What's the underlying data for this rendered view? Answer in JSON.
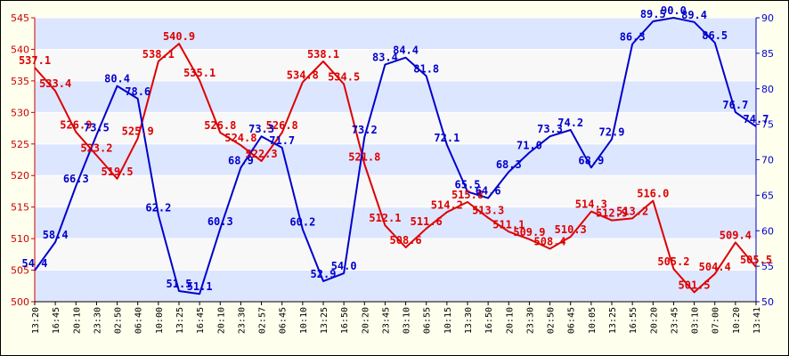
{
  "chart_data": {
    "type": "line",
    "x": [
      "13:20",
      "16:45",
      "20:10",
      "23:30",
      "02:50",
      "06:40",
      "10:00",
      "13:25",
      "16:45",
      "20:10",
      "23:30",
      "02:57",
      "06:45",
      "10:10",
      "13:25",
      "16:50",
      "20:20",
      "23:45",
      "03:10",
      "06:55",
      "10:15",
      "13:30",
      "16:50",
      "20:10",
      "23:30",
      "02:50",
      "06:45",
      "10:05",
      "13:25",
      "16:55",
      "20:20",
      "23:45",
      "03:10",
      "07:00",
      "10:20",
      "13:41"
    ],
    "y_left": {
      "min": 500,
      "max": 545,
      "step": 5,
      "color": "#cc0000"
    },
    "y_right": {
      "min": 50,
      "max": 90,
      "step": 5,
      "color": "#0000cc"
    },
    "grid": true,
    "band_colors": [
      "#dde6ff",
      "#f8f8f8"
    ],
    "series": [
      {
        "axis": "left",
        "color": "#dd0000",
        "points": [
          {
            "i": 0,
            "v": 537.1,
            "label": "537.1"
          },
          {
            "i": 1,
            "v": 533.4,
            "label": "533.4"
          },
          {
            "i": 2,
            "v": 526.9,
            "label": "526.9"
          },
          {
            "i": 3,
            "v": 523.2,
            "label": "523.2"
          },
          {
            "i": 4,
            "v": 519.5,
            "label": "519.5"
          },
          {
            "i": 5,
            "v": 525.9,
            "label": "525.9"
          },
          {
            "i": 6,
            "v": 538.1,
            "label": "538.1"
          },
          {
            "i": 7,
            "v": 540.9,
            "label": "540.9"
          },
          {
            "i": 8,
            "v": 535.1,
            "label": "535.1"
          },
          {
            "i": 9,
            "v": 526.8,
            "label": "526.8"
          },
          {
            "i": 10,
            "v": 524.8,
            "label": "524.8"
          },
          {
            "i": 11,
            "v": 522.3,
            "label": "522.3"
          },
          {
            "i": 12,
            "v": 526.8,
            "label": "526.8"
          },
          {
            "i": 13,
            "v": 534.8,
            "label": "534.8"
          },
          {
            "i": 14,
            "v": 538.1,
            "label": "538.1"
          },
          {
            "i": 15,
            "v": 534.5,
            "label": "534.5"
          },
          {
            "i": 16,
            "v": 521.8,
            "label": "521.8"
          },
          {
            "i": 17,
            "v": 512.1,
            "label": "512.1"
          },
          {
            "i": 18,
            "v": 508.6,
            "label": "508.6"
          },
          {
            "i": 19,
            "v": 511.6,
            "label": "511.6"
          },
          {
            "i": 20,
            "v": 514.2,
            "label": "514.2"
          },
          {
            "i": 21,
            "v": 515.8,
            "label": "515.8"
          },
          {
            "i": 22,
            "v": 513.3,
            "label": "513.3"
          },
          {
            "i": 23,
            "v": 511.1,
            "label": "511.1"
          },
          {
            "i": 24,
            "v": 509.9,
            "label": "509.9"
          },
          {
            "i": 25,
            "v": 508.4,
            "label": "508.4"
          },
          {
            "i": 26,
            "v": 510.3,
            "label": "510.3"
          },
          {
            "i": 27,
            "v": 514.3,
            "label": "514.3"
          },
          {
            "i": 28,
            "v": 512.9,
            "label": "512.9"
          },
          {
            "i": 29,
            "v": 513.2,
            "label": "513.2"
          },
          {
            "i": 30,
            "v": 516.0,
            "label": "516.0"
          },
          {
            "i": 31,
            "v": 505.2,
            "label": "505.2"
          },
          {
            "i": 32,
            "v": 501.5,
            "label": "501.5"
          },
          {
            "i": 33,
            "v": 504.4,
            "label": "504.4"
          },
          {
            "i": 34,
            "v": 509.4,
            "label": "509.4"
          },
          {
            "i": 35,
            "v": 505.5,
            "label": "505.5"
          }
        ]
      },
      {
        "axis": "right",
        "color": "#0000cc",
        "points": [
          {
            "i": 0,
            "v": 54.4,
            "label": "54.4"
          },
          {
            "i": 1,
            "v": 58.4,
            "label": "58.4"
          },
          {
            "i": 2,
            "v": 66.3,
            "label": "66.3"
          },
          {
            "i": 3,
            "v": 73.5,
            "label": "73.5"
          },
          {
            "i": 4,
            "v": 80.4,
            "label": "80.4"
          },
          {
            "i": 5,
            "v": 78.6,
            "label": "78.6"
          },
          {
            "i": 6,
            "v": 62.2,
            "label": "62.2"
          },
          {
            "i": 7,
            "v": 51.5,
            "label": "51.5"
          },
          {
            "i": 8,
            "v": 51.1,
            "label": "51.1"
          },
          {
            "i": 9,
            "v": 60.3,
            "label": "60.3"
          },
          {
            "i": 10,
            "v": 68.9,
            "label": "68.9"
          },
          {
            "i": 11,
            "v": 73.3,
            "label": "73.3"
          },
          {
            "i": 12,
            "v": 71.7,
            "label": "71.7"
          },
          {
            "i": 13,
            "v": 60.2,
            "label": "60.2"
          },
          {
            "i": 14,
            "v": 52.9,
            "label": "52.9"
          },
          {
            "i": 15,
            "v": 54.0,
            "label": "54.0"
          },
          {
            "i": 16,
            "v": 73.2,
            "label": "73.2"
          },
          {
            "i": 17,
            "v": 83.4,
            "label": "83.4"
          },
          {
            "i": 18,
            "v": 84.4,
            "label": "84.4"
          },
          {
            "i": 19,
            "v": 81.8,
            "label": "81.8"
          },
          {
            "i": 20,
            "v": 72.1,
            "label": "72.1"
          },
          {
            "i": 21,
            "v": 65.5,
            "label": "65.5"
          },
          {
            "i": 22,
            "v": 64.6,
            "label": "64.6"
          },
          {
            "i": 23,
            "v": 68.3,
            "label": "68.3"
          },
          {
            "i": 24,
            "v": 71.0,
            "label": "71.0"
          },
          {
            "i": 25,
            "v": 73.3,
            "label": "73.3"
          },
          {
            "i": 26,
            "v": 74.2,
            "label": "74.2"
          },
          {
            "i": 27,
            "v": 68.9,
            "label": "68.9"
          },
          {
            "i": 28,
            "v": 72.9,
            "label": "72.9"
          },
          {
            "i": 29,
            "v": 86.3,
            "label": "86.3"
          },
          {
            "i": 30,
            "v": 89.5,
            "label": "89.5"
          },
          {
            "i": 31,
            "v": 90.0,
            "label": "90.0"
          },
          {
            "i": 32,
            "v": 89.4,
            "label": "89.4"
          },
          {
            "i": 33,
            "v": 86.5,
            "label": "86.5"
          },
          {
            "i": 34,
            "v": 76.7,
            "label": "76.7"
          },
          {
            "i": 35,
            "v": 74.7,
            "label": "74.7"
          }
        ]
      }
    ]
  }
}
